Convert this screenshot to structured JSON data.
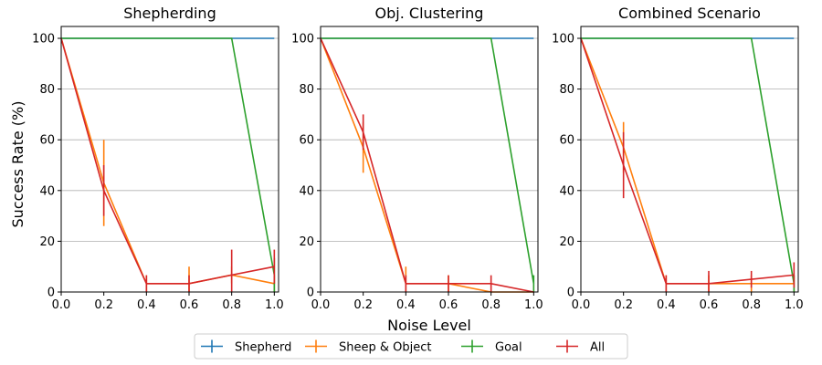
{
  "chart_data": {
    "type": "line",
    "shared_xlabel": "Noise Level",
    "shared_ylabel": "Success Rate (%)",
    "xlim": [
      0.0,
      1.0
    ],
    "ylim": [
      0,
      100
    ],
    "x_ticks": [
      "0.0",
      "0.2",
      "0.4",
      "0.6",
      "0.8",
      "1.0"
    ],
    "y_ticks": [
      "0",
      "20",
      "40",
      "60",
      "80",
      "100"
    ],
    "grid": "horizontal",
    "legend": {
      "placement": "bottom-center",
      "entries": [
        "Shepherd",
        "Sheep & Object",
        "Goal",
        "All"
      ]
    },
    "colors": {
      "Shepherd": "#1f77b4",
      "Sheep & Object": "#ff7f0e",
      "Goal": "#2ca02c",
      "All": "#d62728"
    },
    "x": [
      0.0,
      0.2,
      0.4,
      0.6,
      0.8,
      1.0
    ],
    "panels": [
      {
        "title": "Shepherding",
        "series": [
          {
            "name": "Shepherd",
            "values": [
              100,
              100,
              100,
              100,
              100,
              100
            ],
            "err": [
              0,
              0,
              0,
              0,
              0,
              0
            ]
          },
          {
            "name": "Sheep & Object",
            "values": [
              100,
              43,
              3.3,
              3.3,
              6.7,
              3.3
            ],
            "err": [
              0,
              17,
              3.3,
              6.7,
              3.3,
              3.3
            ]
          },
          {
            "name": "Goal",
            "values": [
              100,
              100,
              100,
              100,
              100,
              6.7
            ],
            "err": [
              0,
              0,
              0,
              0,
              0,
              6.7
            ]
          },
          {
            "name": "All",
            "values": [
              100,
              40,
              3.3,
              3.3,
              6.7,
              10
            ],
            "err": [
              0,
              10,
              3.3,
              3.3,
              10,
              6.7
            ]
          }
        ]
      },
      {
        "title": "Obj. Clustering",
        "series": [
          {
            "name": "Shepherd",
            "values": [
              100,
              100,
              100,
              100,
              100,
              100
            ],
            "err": [
              0,
              0,
              0,
              0,
              0,
              0
            ]
          },
          {
            "name": "Sheep & Object",
            "values": [
              100,
              57,
              3.3,
              3.3,
              0,
              0
            ],
            "err": [
              0,
              10,
              6.7,
              3.3,
              0,
              0
            ]
          },
          {
            "name": "Goal",
            "values": [
              100,
              100,
              100,
              100,
              100,
              3.3
            ],
            "err": [
              0,
              0,
              0,
              0,
              0,
              3.3
            ]
          },
          {
            "name": "All",
            "values": [
              100,
              63,
              3.3,
              3.3,
              3.3,
              0
            ],
            "err": [
              0,
              7,
              3.3,
              3.3,
              3.3,
              0
            ]
          }
        ]
      },
      {
        "title": "Combined Scenario",
        "series": [
          {
            "name": "Shepherd",
            "values": [
              100,
              100,
              100,
              100,
              100,
              100
            ],
            "err": [
              0,
              0,
              0,
              0,
              0,
              0
            ]
          },
          {
            "name": "Sheep & Object",
            "values": [
              100,
              57,
              3.3,
              3.3,
              3.3,
              3.3
            ],
            "err": [
              0,
              10,
              3.3,
              3.3,
              3.3,
              3.3
            ]
          },
          {
            "name": "Goal",
            "values": [
              100,
              100,
              100,
              100,
              100,
              3.3
            ],
            "err": [
              0,
              0,
              0,
              0,
              0,
              3.3
            ]
          },
          {
            "name": "All",
            "values": [
              100,
              50,
              3.3,
              3.3,
              5,
              6.7
            ],
            "err": [
              0,
              13,
              3.3,
              5,
              3.3,
              5
            ]
          }
        ]
      }
    ]
  }
}
